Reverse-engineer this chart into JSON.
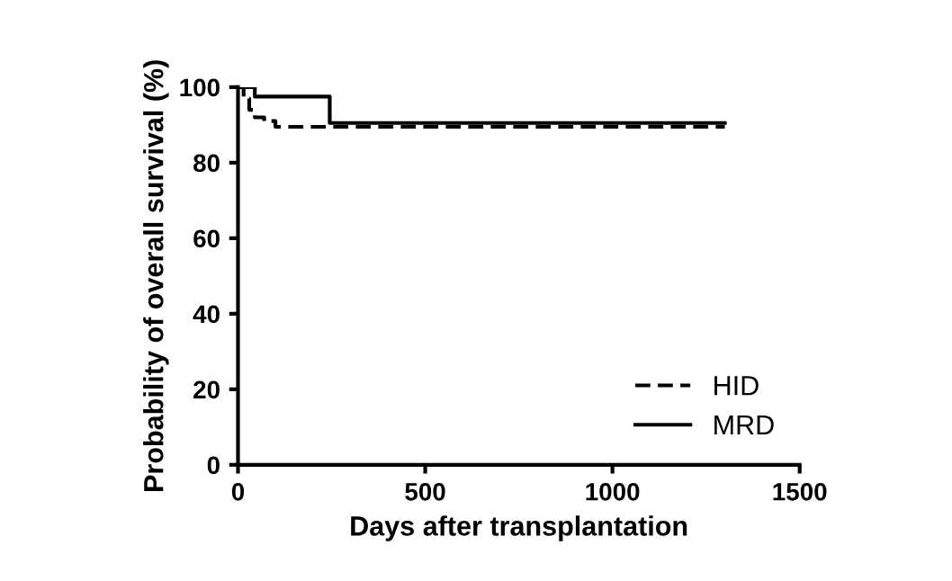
{
  "chart_data": {
    "type": "step",
    "xlabel": "Days after transplantation",
    "ylabel": "Probability of overall survival (%)",
    "xlim": [
      0,
      1500
    ],
    "ylim": [
      0,
      100
    ],
    "xticks": [
      0,
      500,
      1000,
      1500
    ],
    "yticks": [
      0,
      20,
      40,
      60,
      80,
      100
    ],
    "grid": false,
    "legend": "bottom right",
    "series": [
      {
        "name": "HID",
        "color": "#000000",
        "line_style": "dashed",
        "x": [
          0,
          15,
          30,
          45,
          70,
          100,
          1300
        ],
        "values": [
          100,
          97,
          94,
          92,
          91,
          89.5,
          89.5
        ]
      },
      {
        "name": "MRD",
        "color": "#000000",
        "line_style": "solid",
        "x": [
          0,
          45,
          245,
          1300
        ],
        "values": [
          100,
          97.5,
          90.5,
          90.5
        ]
      }
    ]
  }
}
